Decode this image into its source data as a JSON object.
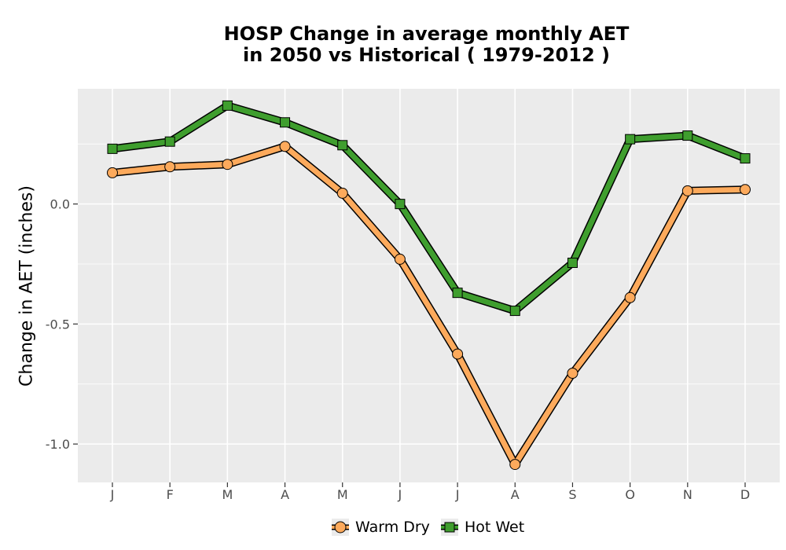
{
  "chart_data": {
    "type": "line",
    "title_line1": "HOSP  Change in average monthly AET",
    "title_line2": "in 2050 vs Historical ( 1979-2012 )",
    "xlabel": "",
    "ylabel": "Change in AET (inches)",
    "categories": [
      "J",
      "F",
      "M",
      "A",
      "M",
      "J",
      "J",
      "A",
      "S",
      "O",
      "N",
      "D"
    ],
    "ylim": [
      -1.16,
      0.48
    ],
    "yticks": [
      0.0,
      -0.5,
      -1.0
    ],
    "ytick_labels": [
      "0.0",
      "-0.5",
      "-1.0"
    ],
    "grid": true,
    "legend_position": "bottom",
    "series": [
      {
        "name": "Warm Dry",
        "color": "#fdaa5c",
        "marker": "circle",
        "values": [
          0.13,
          0.155,
          0.165,
          0.24,
          0.045,
          -0.23,
          -0.625,
          -1.085,
          -0.705,
          -0.39,
          0.055,
          0.06
        ]
      },
      {
        "name": "Hot Wet",
        "color": "#3f9e2e",
        "marker": "square",
        "values": [
          0.23,
          0.26,
          0.41,
          0.34,
          0.245,
          0.0,
          -0.37,
          -0.445,
          -0.245,
          0.27,
          0.285,
          0.19
        ]
      }
    ]
  }
}
